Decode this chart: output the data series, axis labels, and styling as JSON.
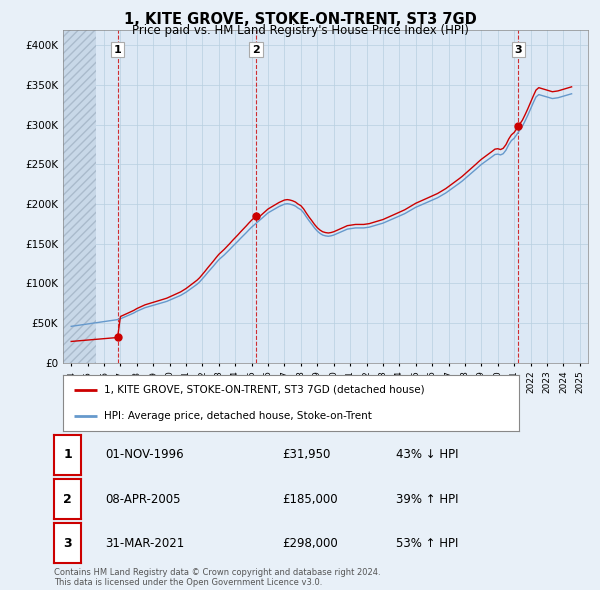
{
  "title": "1, KITE GROVE, STOKE-ON-TRENT, ST3 7GD",
  "subtitle": "Price paid vs. HM Land Registry's House Price Index (HPI)",
  "hpi_label": "HPI: Average price, detached house, Stoke-on-Trent",
  "property_label": "1, KITE GROVE, STOKE-ON-TRENT, ST3 7GD (detached house)",
  "copyright": "Contains HM Land Registry data © Crown copyright and database right 2024.\nThis data is licensed under the Open Government Licence v3.0.",
  "sale_color": "#cc0000",
  "hpi_color": "#6699cc",
  "vline_color": "#cc0000",
  "background_color": "#e8f0f8",
  "plot_bg": "#dce8f5",
  "ylim": [
    0,
    420000
  ],
  "yticks": [
    0,
    50000,
    100000,
    150000,
    200000,
    250000,
    300000,
    350000,
    400000
  ],
  "ytick_labels": [
    "£0",
    "£50K",
    "£100K",
    "£150K",
    "£200K",
    "£250K",
    "£300K",
    "£350K",
    "£400K"
  ],
  "transactions": [
    {
      "id": 1,
      "date_num": 1996.83,
      "price": 31950,
      "label": "1"
    },
    {
      "id": 2,
      "date_num": 2005.27,
      "price": 185000,
      "label": "2"
    },
    {
      "id": 3,
      "date_num": 2021.25,
      "price": 298000,
      "label": "3"
    }
  ],
  "table_rows": [
    {
      "num": "1",
      "date": "01-NOV-1996",
      "price": "£31,950",
      "hpi": "43% ↓ HPI"
    },
    {
      "num": "2",
      "date": "08-APR-2005",
      "price": "£185,000",
      "hpi": "39% ↑ HPI"
    },
    {
      "num": "3",
      "date": "31-MAR-2021",
      "price": "£298,000",
      "hpi": "53% ↑ HPI"
    }
  ],
  "hpi_dates": [
    1994.0,
    1994.17,
    1994.33,
    1994.5,
    1994.67,
    1994.83,
    1995.0,
    1995.17,
    1995.33,
    1995.5,
    1995.67,
    1995.83,
    1996.0,
    1996.17,
    1996.33,
    1996.5,
    1996.67,
    1996.83,
    1997.0,
    1997.17,
    1997.33,
    1997.5,
    1997.67,
    1997.83,
    1998.0,
    1998.17,
    1998.33,
    1998.5,
    1998.67,
    1998.83,
    1999.0,
    1999.17,
    1999.33,
    1999.5,
    1999.67,
    1999.83,
    2000.0,
    2000.17,
    2000.33,
    2000.5,
    2000.67,
    2000.83,
    2001.0,
    2001.17,
    2001.33,
    2001.5,
    2001.67,
    2001.83,
    2002.0,
    2002.17,
    2002.33,
    2002.5,
    2002.67,
    2002.83,
    2003.0,
    2003.17,
    2003.33,
    2003.5,
    2003.67,
    2003.83,
    2004.0,
    2004.17,
    2004.33,
    2004.5,
    2004.67,
    2004.83,
    2005.0,
    2005.17,
    2005.33,
    2005.5,
    2005.67,
    2005.83,
    2006.0,
    2006.17,
    2006.33,
    2006.5,
    2006.67,
    2006.83,
    2007.0,
    2007.17,
    2007.33,
    2007.5,
    2007.67,
    2007.83,
    2008.0,
    2008.17,
    2008.33,
    2008.5,
    2008.67,
    2008.83,
    2009.0,
    2009.17,
    2009.33,
    2009.5,
    2009.67,
    2009.83,
    2010.0,
    2010.17,
    2010.33,
    2010.5,
    2010.67,
    2010.83,
    2011.0,
    2011.17,
    2011.33,
    2011.5,
    2011.67,
    2011.83,
    2012.0,
    2012.17,
    2012.33,
    2012.5,
    2012.67,
    2012.83,
    2013.0,
    2013.17,
    2013.33,
    2013.5,
    2013.67,
    2013.83,
    2014.0,
    2014.17,
    2014.33,
    2014.5,
    2014.67,
    2014.83,
    2015.0,
    2015.17,
    2015.33,
    2015.5,
    2015.67,
    2015.83,
    2016.0,
    2016.17,
    2016.33,
    2016.5,
    2016.67,
    2016.83,
    2017.0,
    2017.17,
    2017.33,
    2017.5,
    2017.67,
    2017.83,
    2018.0,
    2018.17,
    2018.33,
    2018.5,
    2018.67,
    2018.83,
    2019.0,
    2019.17,
    2019.33,
    2019.5,
    2019.67,
    2019.83,
    2020.0,
    2020.17,
    2020.33,
    2020.5,
    2020.67,
    2020.83,
    2021.0,
    2021.17,
    2021.33,
    2021.5,
    2021.67,
    2021.83,
    2022.0,
    2022.17,
    2022.33,
    2022.5,
    2022.67,
    2022.83,
    2023.0,
    2023.17,
    2023.33,
    2023.5,
    2023.67,
    2023.83,
    2024.0,
    2024.17,
    2024.33,
    2024.5
  ],
  "hpi_values": [
    46000,
    46500,
    47000,
    47500,
    48000,
    48500,
    49000,
    49500,
    50000,
    50500,
    51000,
    51500,
    52000,
    52500,
    53000,
    53500,
    54000,
    54500,
    55500,
    57000,
    58500,
    60000,
    61500,
    63000,
    65000,
    66500,
    68000,
    69500,
    70500,
    71500,
    72500,
    73500,
    74500,
    75500,
    76500,
    77500,
    79000,
    80500,
    82000,
    83500,
    85000,
    87000,
    89000,
    91500,
    94000,
    96500,
    99000,
    102000,
    106000,
    110000,
    114000,
    118000,
    122000,
    126000,
    130000,
    133000,
    136000,
    139500,
    143000,
    146500,
    150000,
    153500,
    157000,
    160500,
    164000,
    167500,
    171000,
    174000,
    177000,
    180000,
    183000,
    186000,
    189000,
    191000,
    193000,
    195000,
    197000,
    198500,
    200000,
    200500,
    200000,
    199000,
    197500,
    195000,
    193000,
    189000,
    184000,
    179000,
    174500,
    170000,
    166000,
    163000,
    161000,
    160000,
    159500,
    160000,
    161000,
    162500,
    164000,
    165500,
    167000,
    168500,
    169000,
    169500,
    170000,
    170000,
    170000,
    170000,
    170500,
    171000,
    172000,
    173000,
    174000,
    175000,
    176000,
    177500,
    179000,
    180500,
    182000,
    183500,
    185000,
    186500,
    188000,
    190000,
    192000,
    194000,
    196000,
    197500,
    199000,
    200500,
    202000,
    203500,
    205000,
    206500,
    208000,
    210000,
    212000,
    214000,
    216500,
    219000,
    221500,
    224000,
    226500,
    229000,
    232000,
    235000,
    238000,
    241000,
    244000,
    247000,
    250000,
    252500,
    255000,
    257500,
    260000,
    262500,
    263000,
    262000,
    263500,
    268000,
    275000,
    280000,
    283000,
    288000,
    293000,
    298000,
    305000,
    312000,
    320000,
    328000,
    335000,
    338000,
    337000,
    336000,
    335000,
    334000,
    333000,
    333500,
    334000,
    335000,
    336000,
    337000,
    338000,
    339000
  ],
  "xlim": [
    1993.5,
    2025.5
  ],
  "hatch_end": 1995.5,
  "xtick_years": [
    1994,
    1995,
    1996,
    1997,
    1998,
    1999,
    2000,
    2001,
    2002,
    2003,
    2004,
    2005,
    2006,
    2007,
    2008,
    2009,
    2010,
    2011,
    2012,
    2013,
    2014,
    2015,
    2016,
    2017,
    2018,
    2019,
    2020,
    2021,
    2022,
    2023,
    2024,
    2025
  ]
}
